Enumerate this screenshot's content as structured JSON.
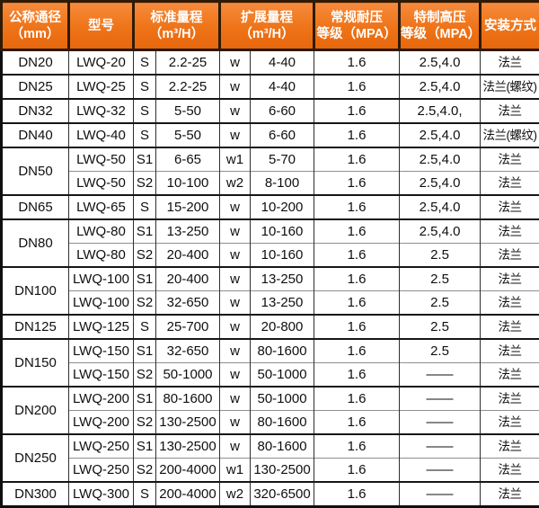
{
  "page": {
    "kind": "product-specification-table",
    "language": "zh-CN"
  },
  "colors": {
    "header_gradient_top": "#f68a3c",
    "header_gradient_bottom": "#e7660c",
    "header_text": "#ffffff",
    "header_border": "#2e1b06",
    "body_border_dark": "#161616",
    "body_border_thin": "#8f8f8f",
    "body_text": "#0f0f0f",
    "body_bg": "#ffffff"
  },
  "table": {
    "header": [
      {
        "name": "header-nominal-diameter",
        "label": "公称通径\n（mm）",
        "colspan": 1
      },
      {
        "name": "header-model",
        "label": "型号",
        "colspan": 1
      },
      {
        "name": "header-standard-range",
        "label": "标准量程\n（m³/H）",
        "colspan": 2
      },
      {
        "name": "header-extended-range",
        "label": "扩展量程\n（m³/H）",
        "colspan": 2
      },
      {
        "name": "header-normal-pressure",
        "label": "常规耐压\n等级（MPA）",
        "colspan": 1
      },
      {
        "name": "header-high-pressure",
        "label": "特制高压\n等级（MPA）",
        "colspan": 1
      },
      {
        "name": "header-installation",
        "label": "安装方式",
        "colspan": 1
      }
    ],
    "rows": [
      {
        "group": "DN20",
        "rowspan": 1,
        "model": "LWQ-20",
        "s_code": "S",
        "std_range": "2.2-25",
        "w_code": "w",
        "ext_range": "4-40",
        "mpa": "1.6",
        "high_mpa": "2.5,4.0",
        "install": "法兰"
      },
      {
        "group": "DN25",
        "rowspan": 1,
        "model": "LWQ-25",
        "s_code": "S",
        "std_range": "2.2-25",
        "w_code": "w",
        "ext_range": "4-40",
        "mpa": "1.6",
        "high_mpa": "2.5,4.0",
        "install": "法兰(螺纹)"
      },
      {
        "group": "DN32",
        "rowspan": 1,
        "model": "LWQ-32",
        "s_code": "S",
        "std_range": "5-50",
        "w_code": "w",
        "ext_range": "6-60",
        "mpa": "1.6",
        "high_mpa": "2.5,4.0,",
        "install": "法兰"
      },
      {
        "group": "DN40",
        "rowspan": 1,
        "model": "LWQ-40",
        "s_code": "S",
        "std_range": "5-50",
        "w_code": "w",
        "ext_range": "6-60",
        "mpa": "1.6",
        "high_mpa": "2.5,4.0",
        "install": "法兰(螺纹)"
      },
      {
        "group": "DN50",
        "rowspan": 2,
        "model": "LWQ-50",
        "s_code": "S1",
        "std_range": "6-65",
        "w_code": "w1",
        "ext_range": "5-70",
        "mpa": "1.6",
        "high_mpa": "2.5,4.0",
        "install": "法兰"
      },
      {
        "sub": true,
        "model": "LWQ-50",
        "s_code": "S2",
        "std_range": "10-100",
        "w_code": "w2",
        "ext_range": "8-100",
        "mpa": "1.6",
        "high_mpa": "2.5,4.0",
        "install": "法兰"
      },
      {
        "group": "DN65",
        "rowspan": 1,
        "model": "LWQ-65",
        "s_code": "S",
        "std_range": "15-200",
        "w_code": "w",
        "ext_range": "10-200",
        "mpa": "1.6",
        "high_mpa": "2.5,4.0",
        "install": "法兰"
      },
      {
        "group": "DN80",
        "rowspan": 2,
        "model": "LWQ-80",
        "s_code": "S1",
        "std_range": "13-250",
        "w_code": "w",
        "ext_range": "10-160",
        "mpa": "1.6",
        "high_mpa": "2.5,4.0",
        "install": "法兰"
      },
      {
        "sub": true,
        "model": "LWQ-80",
        "s_code": "S2",
        "std_range": "20-400",
        "w_code": "w",
        "ext_range": "10-160",
        "mpa": "1.6",
        "high_mpa": "2.5",
        "install": "法兰"
      },
      {
        "group": "DN100",
        "rowspan": 2,
        "model": "LWQ-100",
        "s_code": "S1",
        "std_range": "20-400",
        "w_code": "w",
        "ext_range": "13-250",
        "mpa": "1.6",
        "high_mpa": "2.5",
        "install": "法兰"
      },
      {
        "sub": true,
        "model": "LWQ-100",
        "s_code": "S2",
        "std_range": "32-650",
        "w_code": "w",
        "ext_range": "13-250",
        "mpa": "1.6",
        "high_mpa": "2.5",
        "install": "法兰"
      },
      {
        "group": "DN125",
        "rowspan": 1,
        "model": "LWQ-125",
        "s_code": "S",
        "std_range": "25-700",
        "w_code": "w",
        "ext_range": "20-800",
        "mpa": "1.6",
        "high_mpa": "2.5",
        "install": "法兰"
      },
      {
        "group": "DN150",
        "rowspan": 2,
        "model": "LWQ-150",
        "s_code": "S1",
        "std_range": "32-650",
        "w_code": "w",
        "ext_range": "80-1600",
        "mpa": "1.6",
        "high_mpa": "2.5",
        "install": "法兰"
      },
      {
        "sub": true,
        "model": "LWQ-150",
        "s_code": "S2",
        "std_range": "50-1000",
        "w_code": "w",
        "ext_range": "50-1000",
        "mpa": "1.6",
        "high_mpa": "——",
        "install": "法兰"
      },
      {
        "group": "DN200",
        "rowspan": 2,
        "model": "LWQ-200",
        "s_code": "S1",
        "std_range": "80-1600",
        "w_code": "w",
        "ext_range": "50-1000",
        "mpa": "1.6",
        "high_mpa": "——",
        "install": "法兰"
      },
      {
        "sub": true,
        "model": "LWQ-200",
        "s_code": "S2",
        "std_range": "130-2500",
        "w_code": "w",
        "ext_range": "80-1600",
        "mpa": "1.6",
        "high_mpa": "——",
        "install": "法兰"
      },
      {
        "group": "DN250",
        "rowspan": 2,
        "model": "LWQ-250",
        "s_code": "S1",
        "std_range": "130-2500",
        "w_code": "w",
        "ext_range": "80-1600",
        "mpa": "1.6",
        "high_mpa": "——",
        "install": "法兰"
      },
      {
        "sub": true,
        "model": "LWQ-250",
        "s_code": "S2",
        "std_range": "200-4000",
        "w_code": "w1",
        "ext_range": "130-2500",
        "mpa": "1.6",
        "high_mpa": "——",
        "install": "法兰"
      },
      {
        "group": "DN300",
        "rowspan": 1,
        "model": "LWQ-300",
        "s_code": "S",
        "std_range": "200-4000",
        "w_code": "w2",
        "ext_range": "320-6500",
        "mpa": "1.6",
        "high_mpa": "——",
        "install": "法兰"
      }
    ]
  }
}
